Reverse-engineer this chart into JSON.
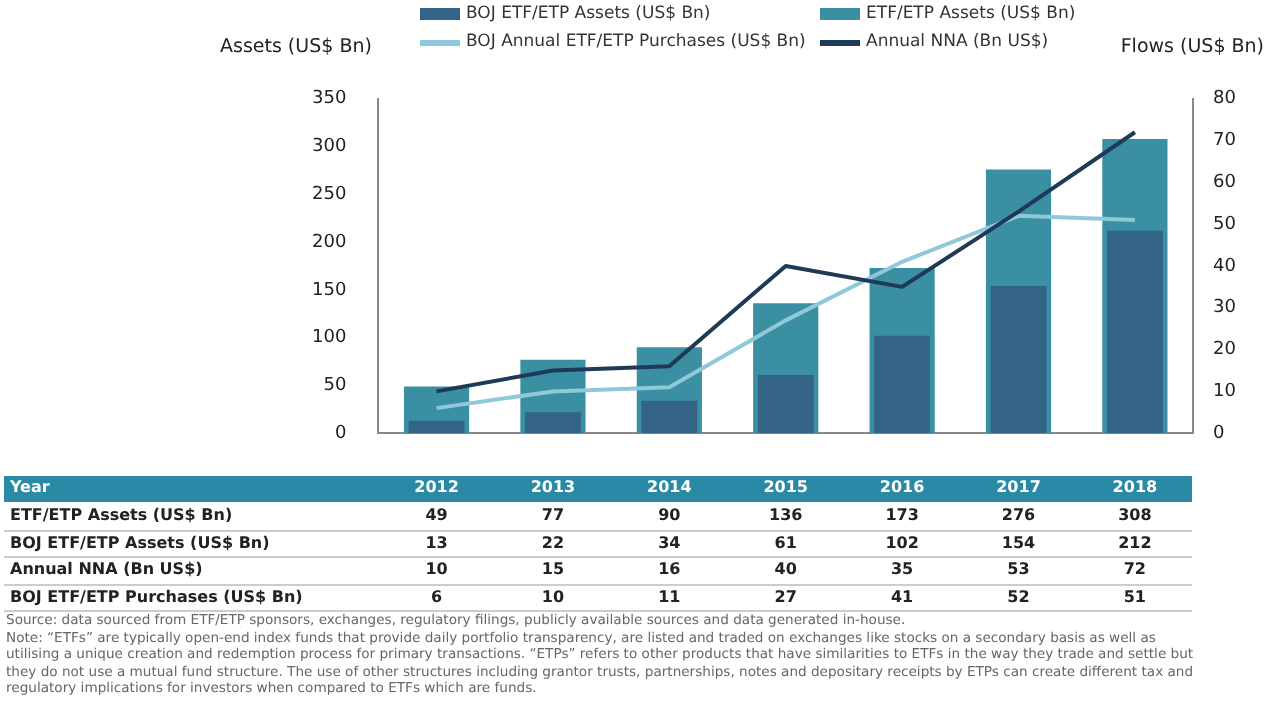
{
  "chart_data": {
    "type": "bar",
    "ylabel": "Assets (US$ Bn)",
    "y2label": "Flows (US$ Bn)",
    "categories": [
      "2012",
      "2013",
      "2014",
      "2015",
      "2016",
      "2017",
      "2018"
    ],
    "series": [
      {
        "name": "ETF/ETP Assets (US$ Bn)",
        "color": "#3b8fa3",
        "values": [
          49,
          77,
          90,
          136,
          173,
          276,
          308
        ]
      },
      {
        "name": "BOJ ETF/ETP Assets (US$ Bn)",
        "color": "#336387",
        "values": [
          13,
          22,
          34,
          61,
          102,
          154,
          212
        ]
      },
      {
        "name": "Annual NNA (Bn US$)",
        "type": "line",
        "axis": "y2",
        "color": "#1e3a56",
        "values": [
          10,
          15,
          16,
          40,
          35,
          53,
          72
        ]
      },
      {
        "name": "BOJ Annual ETF/ETP Purchases  (US$ Bn)",
        "type": "line",
        "axis": "y2",
        "color": "#8fc8d8",
        "values": [
          6,
          10,
          11,
          27,
          41,
          52,
          51
        ]
      }
    ],
    "ylim": [
      0,
      350
    ],
    "yticks": [
      0,
      50,
      100,
      150,
      200,
      250,
      300,
      350
    ],
    "y2lim": [
      0,
      80
    ],
    "y2ticks": [
      0,
      10,
      20,
      30,
      40,
      50,
      60,
      70,
      80
    ],
    "grid": false,
    "legend": "top",
    "marker": "none",
    "line_style": "solid",
    "data_labels": true,
    "annotations": [
      "Year",
      "ETF/ETP Assets (US$ Bn)",
      "BOJ ETF/ETP Assets (US$ Bn)",
      "Annual NNA (Bn US$)",
      "BOJ ETF/ETP Purchases  (US$ Bn)",
      "Source: data sourced from ETF/ETP sponsors, exchanges, regulatory filings, publicly available sources and data generated in-house.",
      "Note: “ETFs” are typically open-end index funds that provide daily portfolio transparency, are listed and traded on exchanges like stocks on a secondary basis as well as utilising a unique creation and redemption process for primary transactions. “ETPs” refers to other products that have similarities to ETFs in the way they trade and settle but they do not use a mutual fund structure. The use of other structures including grantor trusts, partnerships, notes and depositary receipts by ETPs can create different tax and regulatory implications for investors when compared to ETFs which are funds."
    ]
  }
}
